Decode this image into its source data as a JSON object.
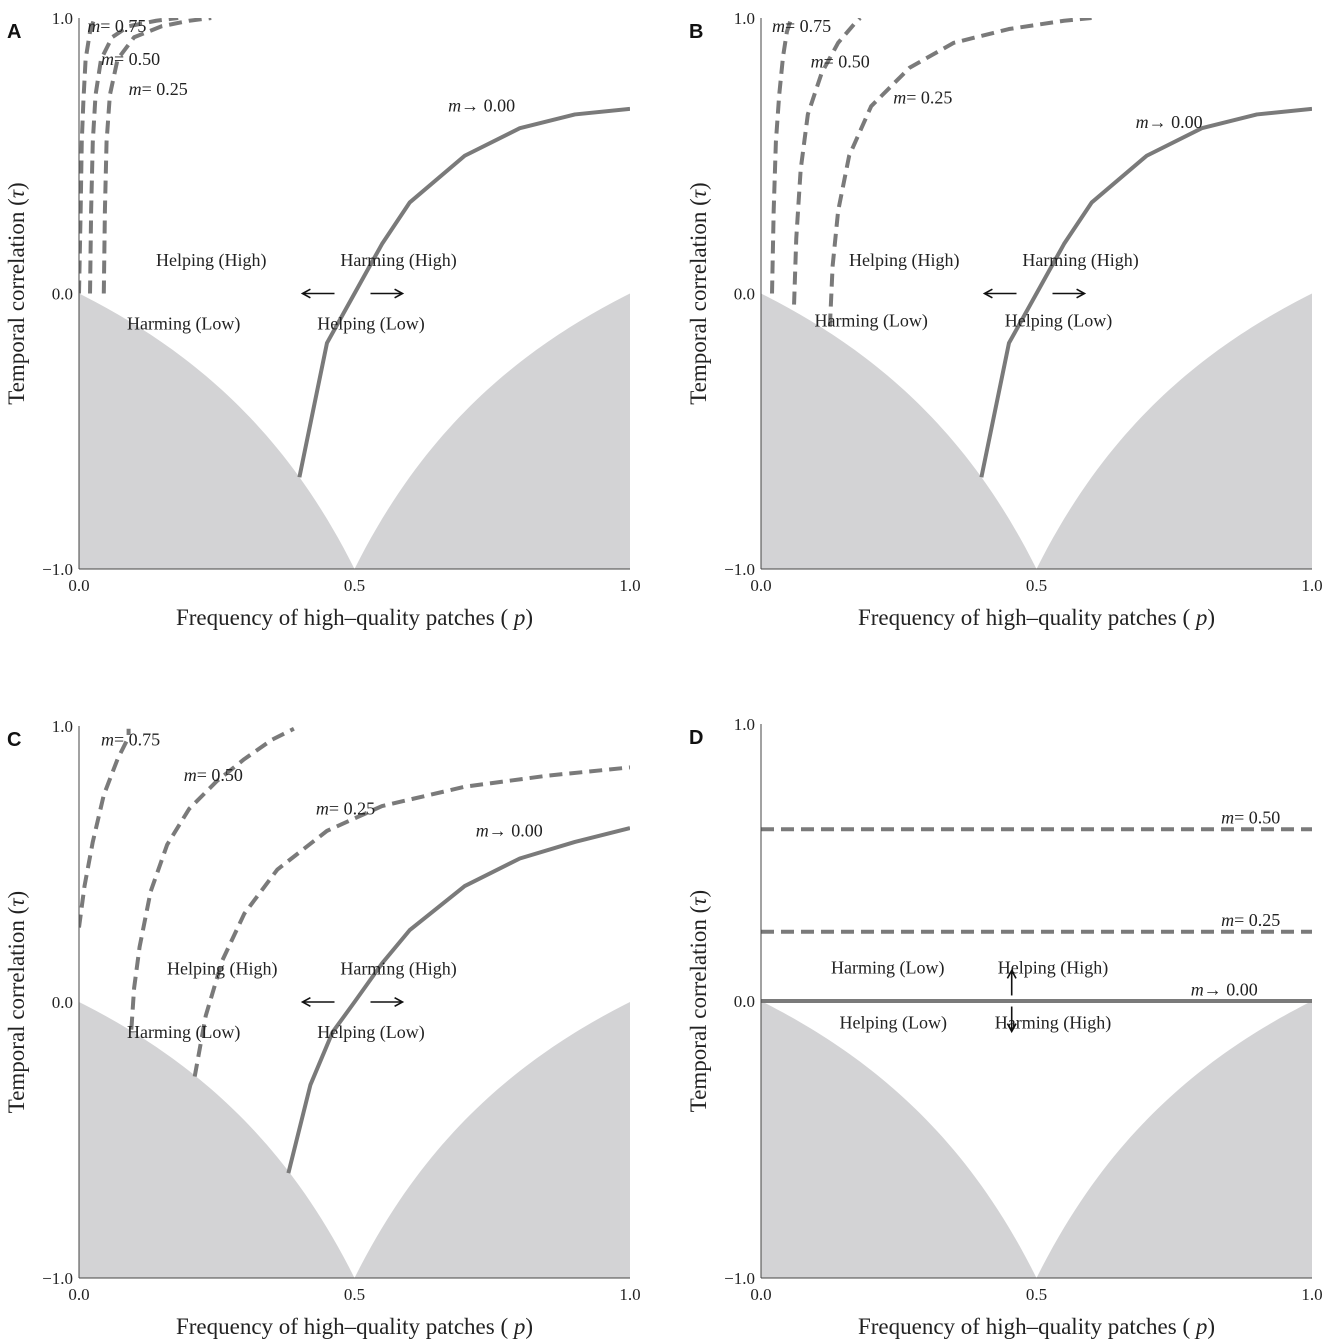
{
  "chart_data": [
    {
      "panel": "A",
      "type": "line",
      "xlabel": "Frequency of high–quality patches ( p)",
      "ylabel": "Temporal correlation (τ)",
      "xlim": [
        0,
        1
      ],
      "ylim": [
        -1,
        1
      ],
      "xticks": [
        "0.0",
        "0.5",
        "1.0"
      ],
      "yticks": [
        "−1.0",
        "0.0",
        "1.0"
      ],
      "shaded_region": "τ < −p/(1−p) and τ < −(1−p)/p (infeasible region)",
      "series": [
        {
          "name": "m = 0.75",
          "style": "dashed",
          "points": [
            [
              0.0,
              0.0
            ],
            [
              0.003,
              0.3
            ],
            [
              0.005,
              0.55
            ],
            [
              0.008,
              0.7
            ],
            [
              0.012,
              0.85
            ],
            [
              0.02,
              0.95
            ],
            [
              0.028,
              1.0
            ]
          ]
        },
        {
          "name": "m = 0.50",
          "style": "dashed",
          "points": [
            [
              0.02,
              0.0
            ],
            [
              0.022,
              0.3
            ],
            [
              0.025,
              0.55
            ],
            [
              0.03,
              0.72
            ],
            [
              0.04,
              0.85
            ],
            [
              0.06,
              0.93
            ],
            [
              0.09,
              0.97
            ],
            [
              0.14,
              0.99
            ],
            [
              0.18,
              1.0
            ]
          ]
        },
        {
          "name": "m = 0.25",
          "style": "dashed",
          "points": [
            [
              0.045,
              0.0
            ],
            [
              0.047,
              0.3
            ],
            [
              0.05,
              0.55
            ],
            [
              0.056,
              0.72
            ],
            [
              0.07,
              0.85
            ],
            [
              0.1,
              0.93
            ],
            [
              0.15,
              0.97
            ],
            [
              0.2,
              0.99
            ],
            [
              0.24,
              1.0
            ]
          ]
        },
        {
          "name": "m → 0.00",
          "style": "solid",
          "points": [
            [
              0.4,
              -0.667
            ],
            [
              0.45,
              -0.18
            ],
            [
              0.5,
              0.0
            ],
            [
              0.55,
              0.18
            ],
            [
              0.6,
              0.33
            ],
            [
              0.7,
              0.5
            ],
            [
              0.8,
              0.6
            ],
            [
              0.9,
              0.65
            ],
            [
              1.0,
              0.67
            ]
          ]
        }
      ],
      "annotations": [
        "Helping (High)",
        "Harming (High)",
        "Harming (Low)",
        "Helping (Low)"
      ]
    },
    {
      "panel": "B",
      "type": "line",
      "xlabel": "Frequency of high–quality patches ( p)",
      "ylabel": "Temporal correlation (τ)",
      "xlim": [
        0,
        1
      ],
      "ylim": [
        -1,
        1
      ],
      "xticks": [
        "0.0",
        "0.5",
        "1.0"
      ],
      "yticks": [
        "−1.0",
        "0.0",
        "1.0"
      ],
      "series": [
        {
          "name": "m = 0.75",
          "style": "dashed",
          "points": [
            [
              0.02,
              0.0
            ],
            [
              0.023,
              0.3
            ],
            [
              0.027,
              0.55
            ],
            [
              0.033,
              0.72
            ],
            [
              0.04,
              0.86
            ],
            [
              0.047,
              0.95
            ],
            [
              0.055,
              1.0
            ]
          ]
        },
        {
          "name": "m = 0.50",
          "style": "dashed",
          "points": [
            [
              0.06,
              -0.04
            ],
            [
              0.064,
              0.2
            ],
            [
              0.072,
              0.45
            ],
            [
              0.085,
              0.65
            ],
            [
              0.11,
              0.8
            ],
            [
              0.14,
              0.91
            ],
            [
              0.17,
              0.98
            ],
            [
              0.18,
              1.0
            ]
          ]
        },
        {
          "name": "m = 0.25",
          "style": "dashed",
          "points": [
            [
              0.125,
              -0.12
            ],
            [
              0.13,
              0.1
            ],
            [
              0.14,
              0.3
            ],
            [
              0.16,
              0.5
            ],
            [
              0.2,
              0.68
            ],
            [
              0.27,
              0.82
            ],
            [
              0.35,
              0.91
            ],
            [
              0.45,
              0.96
            ],
            [
              0.55,
              0.99
            ],
            [
              0.6,
              1.0
            ]
          ]
        },
        {
          "name": "m → 0.00",
          "style": "solid",
          "points": [
            [
              0.4,
              -0.667
            ],
            [
              0.45,
              -0.18
            ],
            [
              0.5,
              0.0
            ],
            [
              0.55,
              0.18
            ],
            [
              0.6,
              0.33
            ],
            [
              0.7,
              0.5
            ],
            [
              0.8,
              0.6
            ],
            [
              0.9,
              0.65
            ],
            [
              1.0,
              0.67
            ]
          ]
        }
      ],
      "annotations": [
        "Helping (High)",
        "Harming (High)",
        "Harming (Low)",
        "Helping (Low)"
      ]
    },
    {
      "panel": "C",
      "type": "line",
      "xlabel": "Frequency of high–quality patches ( p)",
      "ylabel": "Temporal correlation (τ)",
      "xlim": [
        0,
        1
      ],
      "ylim": [
        -1,
        1
      ],
      "xticks": [
        "0.0",
        "0.5",
        "1.0"
      ],
      "yticks": [
        "−1.0",
        "0.0",
        "1.0"
      ],
      "series": [
        {
          "name": "m = 0.75",
          "style": "dashed",
          "points": [
            [
              0.0,
              0.27
            ],
            [
              0.01,
              0.42
            ],
            [
              0.025,
              0.58
            ],
            [
              0.045,
              0.75
            ],
            [
              0.07,
              0.88
            ],
            [
              0.09,
              0.96
            ],
            [
              0.09,
              0.99
            ]
          ]
        },
        {
          "name": "m = 0.50",
          "style": "dashed",
          "points": [
            [
              0.095,
              -0.1
            ],
            [
              0.1,
              0.05
            ],
            [
              0.11,
              0.2
            ],
            [
              0.13,
              0.4
            ],
            [
              0.16,
              0.57
            ],
            [
              0.2,
              0.7
            ],
            [
              0.25,
              0.8
            ],
            [
              0.3,
              0.88
            ],
            [
              0.35,
              0.95
            ],
            [
              0.39,
              0.99
            ]
          ]
        },
        {
          "name": "m = 0.25",
          "style": "dashed",
          "points": [
            [
              0.21,
              -0.27
            ],
            [
              0.23,
              -0.05
            ],
            [
              0.26,
              0.15
            ],
            [
              0.3,
              0.32
            ],
            [
              0.36,
              0.48
            ],
            [
              0.45,
              0.62
            ],
            [
              0.55,
              0.71
            ],
            [
              0.7,
              0.78
            ],
            [
              0.85,
              0.82
            ],
            [
              1.0,
              0.85
            ]
          ]
        },
        {
          "name": "m → 0.00",
          "style": "solid",
          "points": [
            [
              0.38,
              -0.62
            ],
            [
              0.42,
              -0.3
            ],
            [
              0.46,
              -0.11
            ],
            [
              0.5,
              0.0
            ],
            [
              0.55,
              0.14
            ],
            [
              0.6,
              0.26
            ],
            [
              0.7,
              0.42
            ],
            [
              0.8,
              0.52
            ],
            [
              0.9,
              0.58
            ],
            [
              1.0,
              0.63
            ]
          ]
        }
      ],
      "annotations": [
        "Helping (High)",
        "Harming (High)",
        "Harming (Low)",
        "Helping (Low)"
      ]
    },
    {
      "panel": "D",
      "type": "line",
      "xlabel": "Frequency of high–quality patches ( p)",
      "ylabel": "Temporal correlation (τ)",
      "xlim": [
        0,
        1
      ],
      "ylim": [
        -1,
        1
      ],
      "xticks": [
        "0.0",
        "0.5",
        "1.0"
      ],
      "yticks": [
        "−1.0",
        "0.0",
        "1.0"
      ],
      "series": [
        {
          "name": "m = 0.50",
          "style": "dashed",
          "points": [
            [
              0.0,
              0.62
            ],
            [
              1.0,
              0.62
            ]
          ]
        },
        {
          "name": "m = 0.25",
          "style": "dashed",
          "points": [
            [
              0.0,
              0.25
            ],
            [
              1.0,
              0.25
            ]
          ]
        },
        {
          "name": "m → 0.00",
          "style": "solid",
          "points": [
            [
              0.0,
              0.0
            ],
            [
              1.0,
              0.0
            ]
          ]
        }
      ],
      "annotations": [
        "Harming (Low)",
        "Helping (High)",
        "Helping (Low)",
        "Harming (High)"
      ]
    }
  ],
  "panels": [
    {
      "id": "A",
      "label": "A",
      "curve_labels": [
        [
          "m",
          "= 0.75"
        ],
        [
          "m",
          "= 0.50"
        ],
        [
          "m",
          "= 0.25"
        ],
        [
          "m",
          "→ 0.00"
        ]
      ],
      "notes": [
        "Helping (High)",
        "Harming (High)",
        "Harming (Low)",
        "Helping (Low)"
      ]
    },
    {
      "id": "B",
      "label": "B",
      "curve_labels": [
        [
          "m",
          "= 0.75"
        ],
        [
          "m",
          "= 0.50"
        ],
        [
          "m",
          "= 0.25"
        ],
        [
          "m",
          "→ 0.00"
        ]
      ],
      "notes": [
        "Helping (High)",
        "Harming (High)",
        "Harming (Low)",
        "Helping (Low)"
      ]
    },
    {
      "id": "C",
      "label": "C",
      "curve_labels": [
        [
          "m",
          "= 0.75"
        ],
        [
          "m",
          "= 0.50"
        ],
        [
          "m",
          "= 0.25"
        ],
        [
          "m",
          "→ 0.00"
        ]
      ],
      "notes": [
        "Helping (High)",
        "Harming (High)",
        "Harming (Low)",
        "Helping (Low)"
      ]
    },
    {
      "id": "D",
      "label": "D",
      "curve_labels": [
        [
          "m",
          "= 0.50"
        ],
        [
          "m",
          "= 0.25"
        ],
        [
          "m",
          "→ 0.00"
        ]
      ],
      "notes": [
        "Harming (Low)",
        "Helping (High)",
        "Helping (Low)",
        "Harming (High)"
      ]
    }
  ],
  "colors": {
    "curve": "#7a7a7a",
    "shade": "#d3d3d5",
    "text": "#222222"
  }
}
